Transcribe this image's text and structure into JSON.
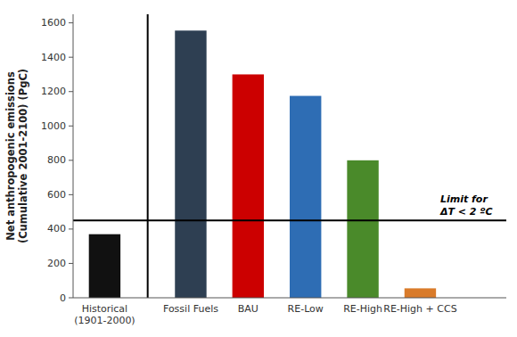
{
  "chart_data": {
    "type": "bar",
    "categories": [
      "Historical\n(1901-2000)",
      "Fossil Fuels",
      "BAU",
      "RE-Low",
      "RE-High",
      "RE-High + CCS"
    ],
    "values": [
      370,
      1555,
      1300,
      1175,
      800,
      55
    ],
    "colors": [
      "#111111",
      "#2e3f52",
      "#cc0000",
      "#2e6db4",
      "#4a8a2a",
      "#d97b2a"
    ],
    "y_label": "Net anthropogenic emissions\n(Cumulative 2001-2100) (PgC)",
    "ylim": [
      0,
      1650
    ],
    "yticks": [
      0,
      200,
      400,
      600,
      800,
      1000,
      1200,
      1400,
      1600
    ],
    "annotations": [
      {
        "text": "Limit for\nΔT < 2 ºC",
        "y": 450
      }
    ],
    "grid": false
  }
}
